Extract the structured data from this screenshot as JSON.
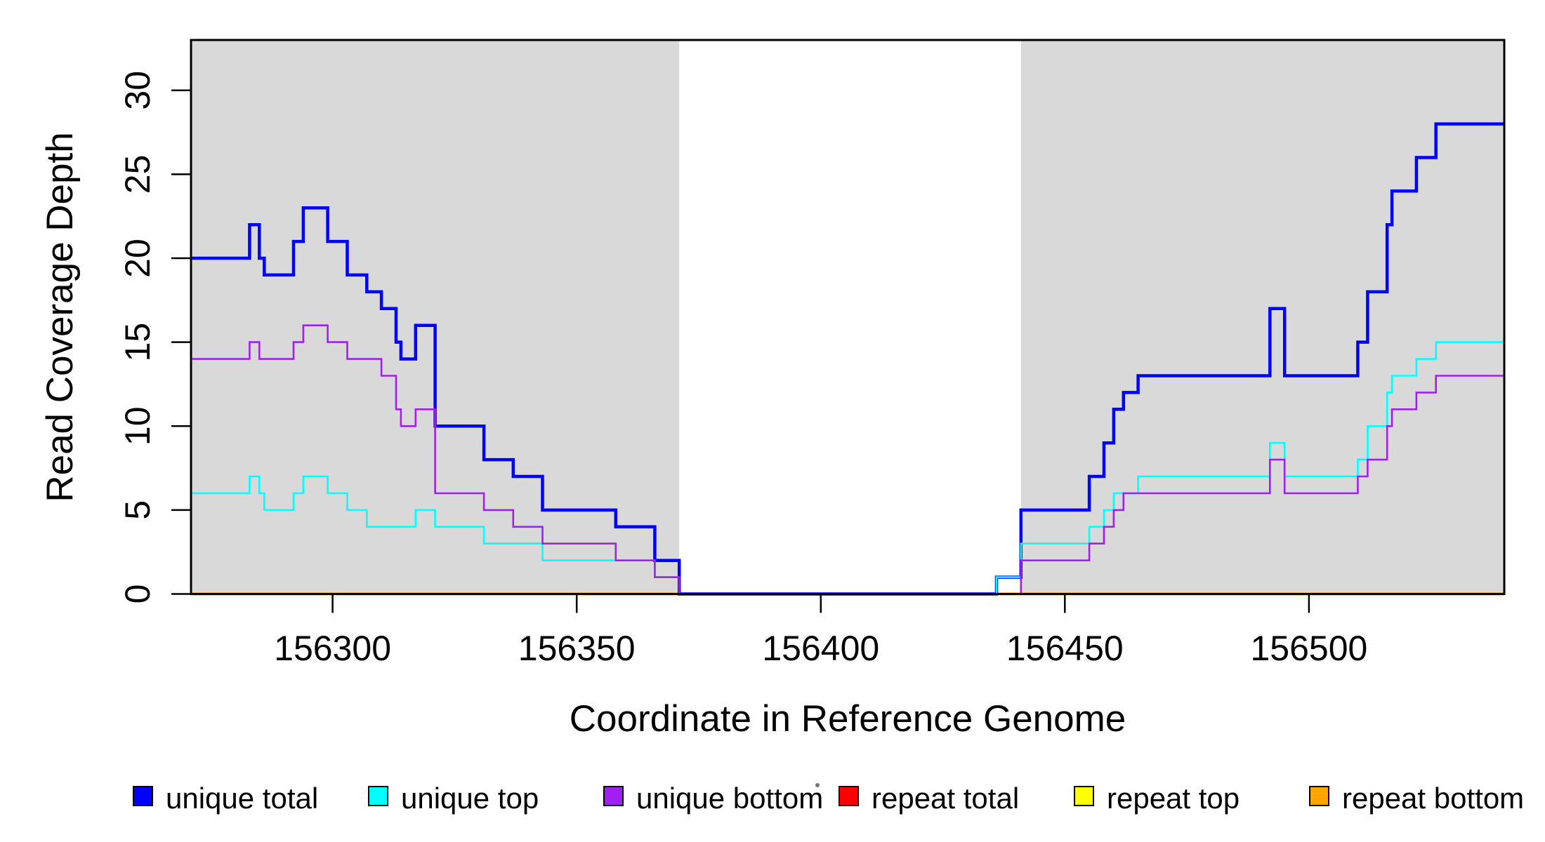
{
  "figure": {
    "background": "#ffffff",
    "shaded_region_color": "#d9d9d9"
  },
  "chart_data": {
    "type": "line",
    "subtype": "step-coverage-plot",
    "title": "",
    "xlabel": "Coordinate in Reference Genome",
    "ylabel": "Read Coverage Depth",
    "xlim": [
      156271,
      156540
    ],
    "ylim": [
      0,
      33
    ],
    "x_ticks": [
      156300,
      156350,
      156400,
      156450,
      156500
    ],
    "y_ticks": [
      0,
      5,
      10,
      15,
      20,
      25,
      30
    ],
    "grid": false,
    "legend_position": "bottom",
    "shaded_regions": [
      {
        "from": 156271,
        "to": 156371
      },
      {
        "from": 156441,
        "to": 156540
      }
    ],
    "series": [
      {
        "name": "unique total",
        "color": "#0000FF",
        "steps": [
          [
            156271,
            20
          ],
          [
            156283,
            22
          ],
          [
            156285,
            20
          ],
          [
            156286,
            19
          ],
          [
            156292,
            21
          ],
          [
            156294,
            23
          ],
          [
            156299,
            21
          ],
          [
            156303,
            19
          ],
          [
            156307,
            18
          ],
          [
            156310,
            17
          ],
          [
            156313,
            15
          ],
          [
            156314,
            14
          ],
          [
            156317,
            16
          ],
          [
            156321,
            10
          ],
          [
            156331,
            8
          ],
          [
            156337,
            7
          ],
          [
            156343,
            5
          ],
          [
            156358,
            4
          ],
          [
            156366,
            2
          ],
          [
            156371,
            0
          ],
          [
            156436,
            1
          ],
          [
            156441,
            5
          ],
          [
            156455,
            7
          ],
          [
            156458,
            9
          ],
          [
            156460,
            11
          ],
          [
            156462,
            12
          ],
          [
            156465,
            13
          ],
          [
            156492,
            17
          ],
          [
            156495,
            13
          ],
          [
            156510,
            15
          ],
          [
            156512,
            18
          ],
          [
            156516,
            22
          ],
          [
            156517,
            24
          ],
          [
            156522,
            26
          ],
          [
            156526,
            28
          ]
        ]
      },
      {
        "name": "unique top",
        "color": "#00FFFF",
        "steps": [
          [
            156271,
            6
          ],
          [
            156283,
            7
          ],
          [
            156285,
            6
          ],
          [
            156286,
            5
          ],
          [
            156292,
            6
          ],
          [
            156294,
            7
          ],
          [
            156299,
            6
          ],
          [
            156303,
            5
          ],
          [
            156307,
            4
          ],
          [
            156317,
            5
          ],
          [
            156321,
            4
          ],
          [
            156331,
            3
          ],
          [
            156343,
            2
          ],
          [
            156366,
            1
          ],
          [
            156371,
            0
          ],
          [
            156436,
            1
          ],
          [
            156441,
            3
          ],
          [
            156455,
            4
          ],
          [
            156458,
            5
          ],
          [
            156460,
            6
          ],
          [
            156465,
            7
          ],
          [
            156492,
            9
          ],
          [
            156495,
            7
          ],
          [
            156510,
            8
          ],
          [
            156512,
            10
          ],
          [
            156516,
            12
          ],
          [
            156517,
            13
          ],
          [
            156522,
            14
          ],
          [
            156526,
            15
          ]
        ]
      },
      {
        "name": "unique bottom",
        "color": "#A020F0",
        "steps": [
          [
            156271,
            14
          ],
          [
            156283,
            15
          ],
          [
            156285,
            14
          ],
          [
            156292,
            15
          ],
          [
            156294,
            16
          ],
          [
            156299,
            15
          ],
          [
            156303,
            14
          ],
          [
            156310,
            13
          ],
          [
            156313,
            11
          ],
          [
            156314,
            10
          ],
          [
            156317,
            11
          ],
          [
            156321,
            6
          ],
          [
            156331,
            5
          ],
          [
            156337,
            4
          ],
          [
            156343,
            3
          ],
          [
            156358,
            2
          ],
          [
            156366,
            1
          ],
          [
            156371,
            0
          ],
          [
            156441,
            2
          ],
          [
            156455,
            3
          ],
          [
            156458,
            4
          ],
          [
            156460,
            5
          ],
          [
            156462,
            6
          ],
          [
            156492,
            8
          ],
          [
            156495,
            6
          ],
          [
            156510,
            7
          ],
          [
            156512,
            8
          ],
          [
            156516,
            10
          ],
          [
            156517,
            11
          ],
          [
            156522,
            12
          ],
          [
            156526,
            13
          ]
        ]
      },
      {
        "name": "repeat total",
        "color": "#FF0000",
        "steps": [
          [
            156271,
            0
          ]
        ]
      },
      {
        "name": "repeat top",
        "color": "#FFFF00",
        "steps": [
          [
            156271,
            0
          ]
        ]
      },
      {
        "name": "repeat bottom",
        "color": "#FFA500",
        "steps": [
          [
            156271,
            0
          ]
        ]
      }
    ]
  },
  "legend": {
    "items": [
      {
        "label": "unique total",
        "color": "#0000FF"
      },
      {
        "label": "unique top",
        "color": "#00FFFF"
      },
      {
        "label": "unique bottom",
        "color": "#A020F0"
      },
      {
        "label": "repeat total",
        "color": "#FF0000"
      },
      {
        "label": "repeat top",
        "color": "#FFFF00"
      },
      {
        "label": "repeat bottom",
        "color": "#FFA500"
      }
    ]
  }
}
